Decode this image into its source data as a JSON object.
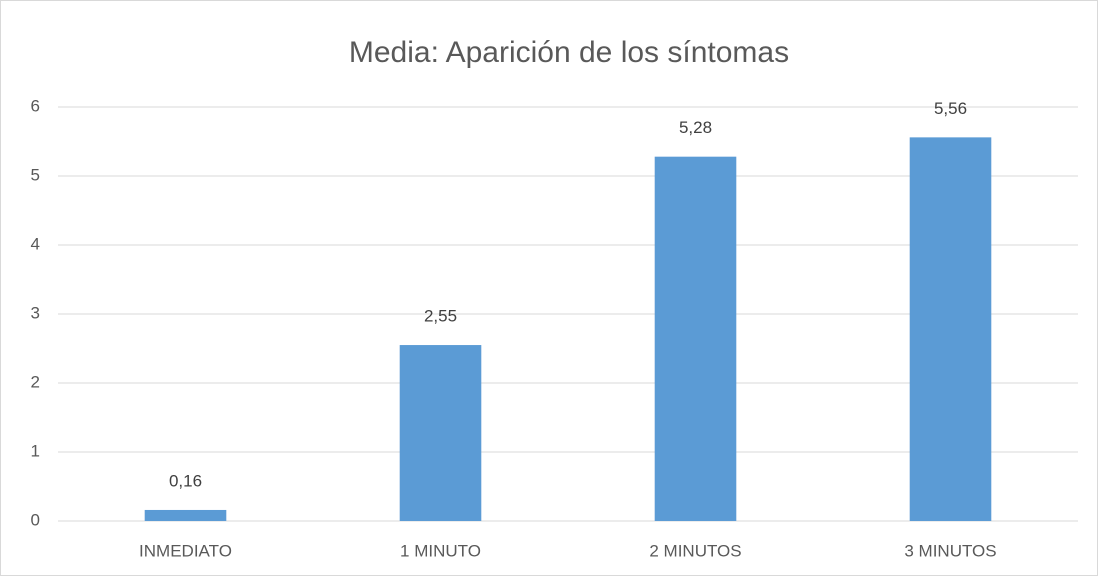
{
  "chart_data": {
    "type": "bar",
    "title": "Media: Aparición de los síntomas",
    "categories": [
      "INMEDIATO",
      "1 MINUTO",
      "2 MINUTOS",
      "3 MINUTOS"
    ],
    "values": [
      0.16,
      2.55,
      5.28,
      5.56
    ],
    "value_labels": [
      "0,16",
      "2,55",
      "5,28",
      "5,56"
    ],
    "color": "#5b9bd5",
    "ylim": [
      0,
      6
    ],
    "yticks": [
      0,
      1,
      2,
      3,
      4,
      5,
      6
    ],
    "grid": true
  }
}
